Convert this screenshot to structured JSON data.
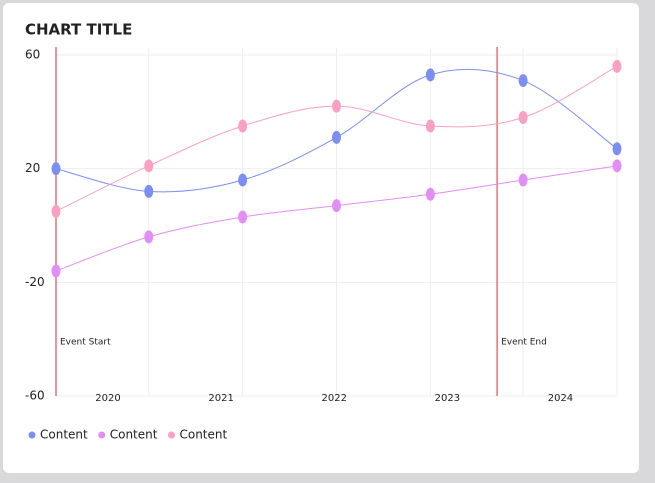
{
  "chart_data": {
    "type": "line",
    "title": "CHART TITLE",
    "x": [
      2019.54,
      2020.36,
      2021.19,
      2022.02,
      2022.85,
      2023.67,
      2024.5
    ],
    "series": [
      {
        "name": "Content",
        "color": "#7b8ff0",
        "values": [
          20,
          12,
          16,
          31,
          53,
          51,
          27
        ]
      },
      {
        "name": "Content",
        "color": "#e28ef7",
        "values": [
          -16,
          -4,
          3,
          7,
          11,
          16,
          21
        ]
      },
      {
        "name": "Content",
        "color": "#f9a0c4",
        "values": [
          5,
          21,
          35,
          42,
          35,
          38,
          56
        ]
      }
    ],
    "xlim": [
      2019.54,
      2024.5
    ],
    "ylim": [
      -60,
      60
    ],
    "xticks": [
      2020,
      2021,
      2022,
      2023,
      2024
    ],
    "yticks": [
      60,
      20,
      -20,
      -60
    ],
    "grid": true,
    "legend": "bottom-left",
    "events": [
      {
        "label": "Event Start",
        "x": 2019.54,
        "color": "#e85a5a"
      },
      {
        "label": "Event End",
        "x": 2023.44,
        "color": "#e85a5a"
      }
    ]
  }
}
